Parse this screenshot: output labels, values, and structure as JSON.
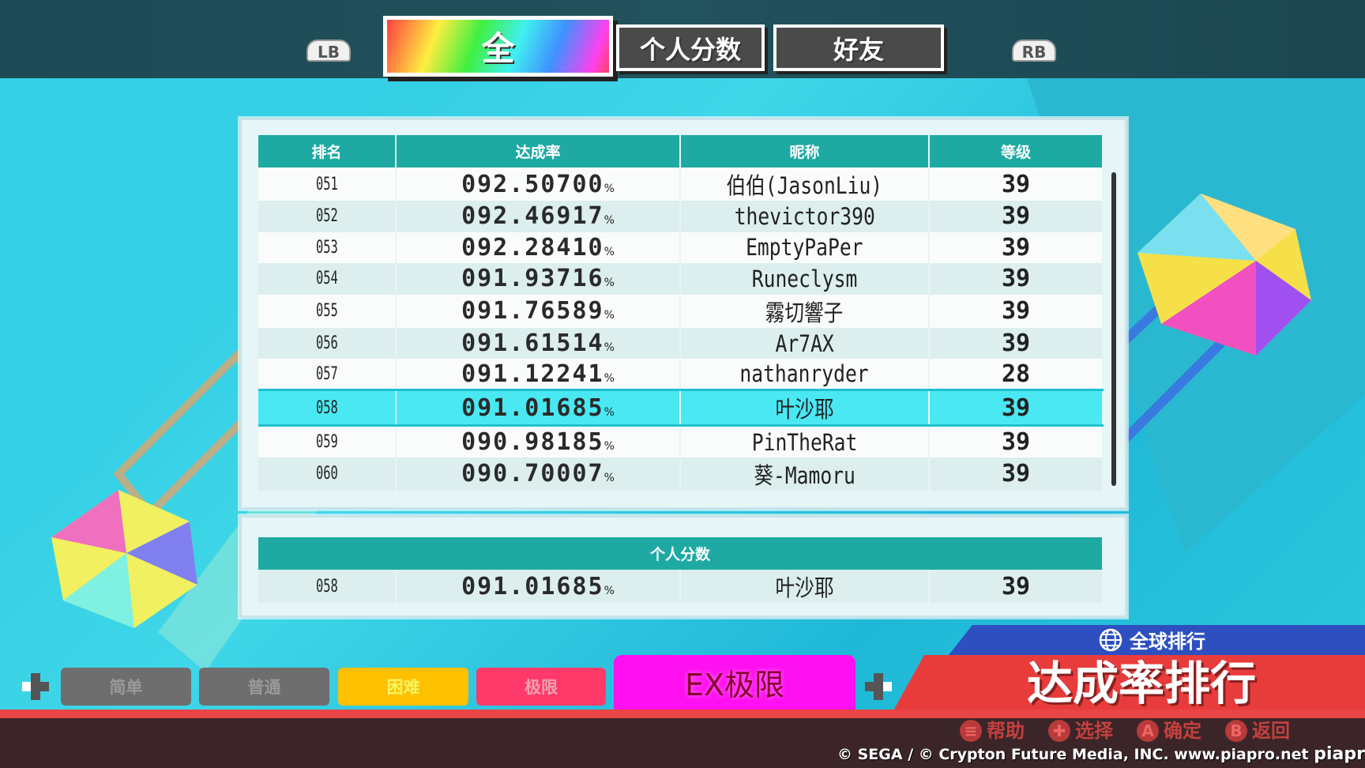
{
  "top_tabs": {
    "lb": "LB",
    "rb": "RB",
    "items": [
      {
        "label": "全",
        "active": true
      },
      {
        "label": "个人分数",
        "active": false
      },
      {
        "label": "好友",
        "active": false
      }
    ]
  },
  "leaderboard": {
    "columns": [
      "排名",
      "达成率",
      "昵称",
      "等级"
    ],
    "percent_sign": "%",
    "selected_rank": "058",
    "rows": [
      {
        "rank": "051",
        "rate": "092.50700",
        "name": "伯伯(JasonLiu)",
        "level": "39"
      },
      {
        "rank": "052",
        "rate": "092.46917",
        "name": "thevictor390",
        "level": "39"
      },
      {
        "rank": "053",
        "rate": "092.28410",
        "name": "EmptyPaPer",
        "level": "39"
      },
      {
        "rank": "054",
        "rate": "091.93716",
        "name": "Runeclysm",
        "level": "39"
      },
      {
        "rank": "055",
        "rate": "091.76589",
        "name": "霧切響子",
        "level": "39"
      },
      {
        "rank": "056",
        "rate": "091.61514",
        "name": "Ar7AX",
        "level": "39"
      },
      {
        "rank": "057",
        "rate": "091.12241",
        "name": "nathanryder",
        "level": "28"
      },
      {
        "rank": "058",
        "rate": "091.01685",
        "name": "叶沙耶",
        "level": "39"
      },
      {
        "rank": "059",
        "rate": "090.98185",
        "name": "PinTheRat",
        "level": "39"
      },
      {
        "rank": "060",
        "rate": "090.70007",
        "name": "葵-Mamoru",
        "level": "39"
      }
    ]
  },
  "personal": {
    "header": "个人分数",
    "rank": "058",
    "rate": "091.01685",
    "name": "叶沙耶",
    "level": "39"
  },
  "difficulties": [
    {
      "label": "简单",
      "bg": "#6e6e6e",
      "fg": "#9a9a9a"
    },
    {
      "label": "普通",
      "bg": "#6e6e6e",
      "fg": "#9a9a9a"
    },
    {
      "label": "困难",
      "bg": "#ffc000",
      "fg": "#f5f560"
    },
    {
      "label": "极限",
      "bg": "#ff3a6a",
      "fg": "#f0a0b0"
    },
    {
      "label": "EX极限",
      "bg": "#ff10f0",
      "fg": "#8a0030",
      "selected": true
    }
  ],
  "ranking": {
    "scope": "全球排行",
    "title": "达成率排行"
  },
  "hints": [
    {
      "button": "≡",
      "label": "帮助"
    },
    {
      "button": "✚",
      "label": "选择"
    },
    {
      "button": "A",
      "label": "确定"
    },
    {
      "button": "B",
      "label": "返回"
    }
  ],
  "copyright": "© SEGA / © Crypton Future Media, INC.  www.piapro.net",
  "logo": "piapro"
}
